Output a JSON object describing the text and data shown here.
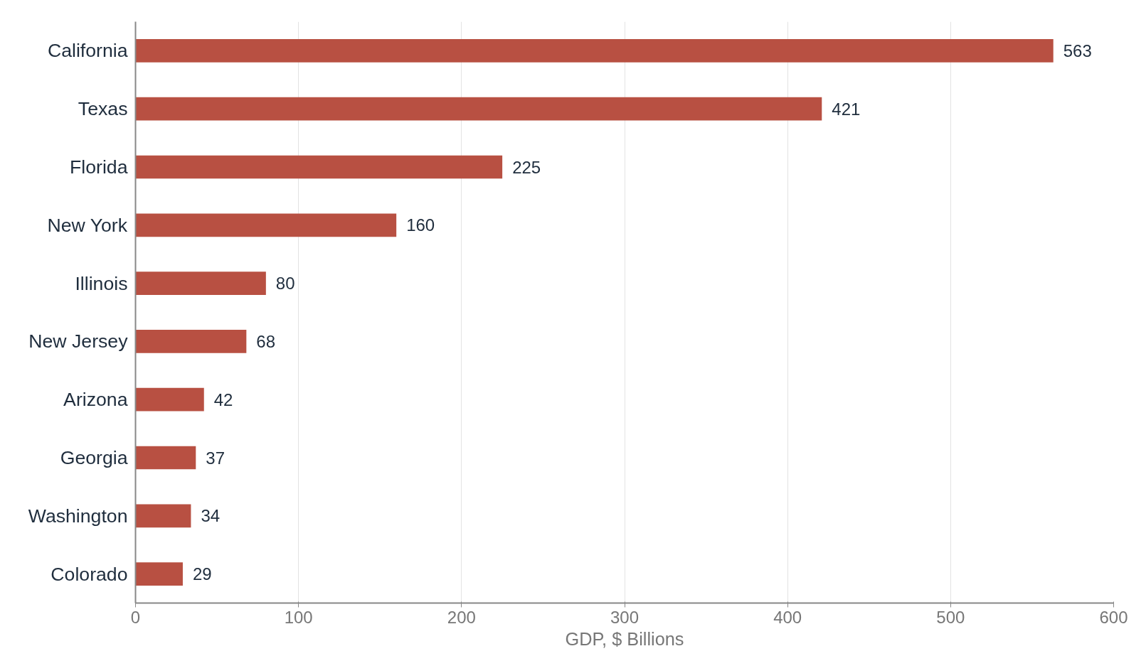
{
  "chart_data": {
    "type": "bar",
    "orientation": "horizontal",
    "categories": [
      "California",
      "Texas",
      "Florida",
      "New York",
      "Illinois",
      "New Jersey",
      "Arizona",
      "Georgia",
      "Washington",
      "Colorado"
    ],
    "values": [
      563,
      421,
      225,
      160,
      80,
      68,
      42,
      37,
      34,
      29
    ],
    "color": "#b85042",
    "xlabel": "GDP, $ Billions",
    "xlim": [
      0,
      600
    ],
    "xticks": [
      0,
      100,
      200,
      300,
      400,
      500,
      600
    ],
    "grid": "x",
    "data_labels": true
  }
}
